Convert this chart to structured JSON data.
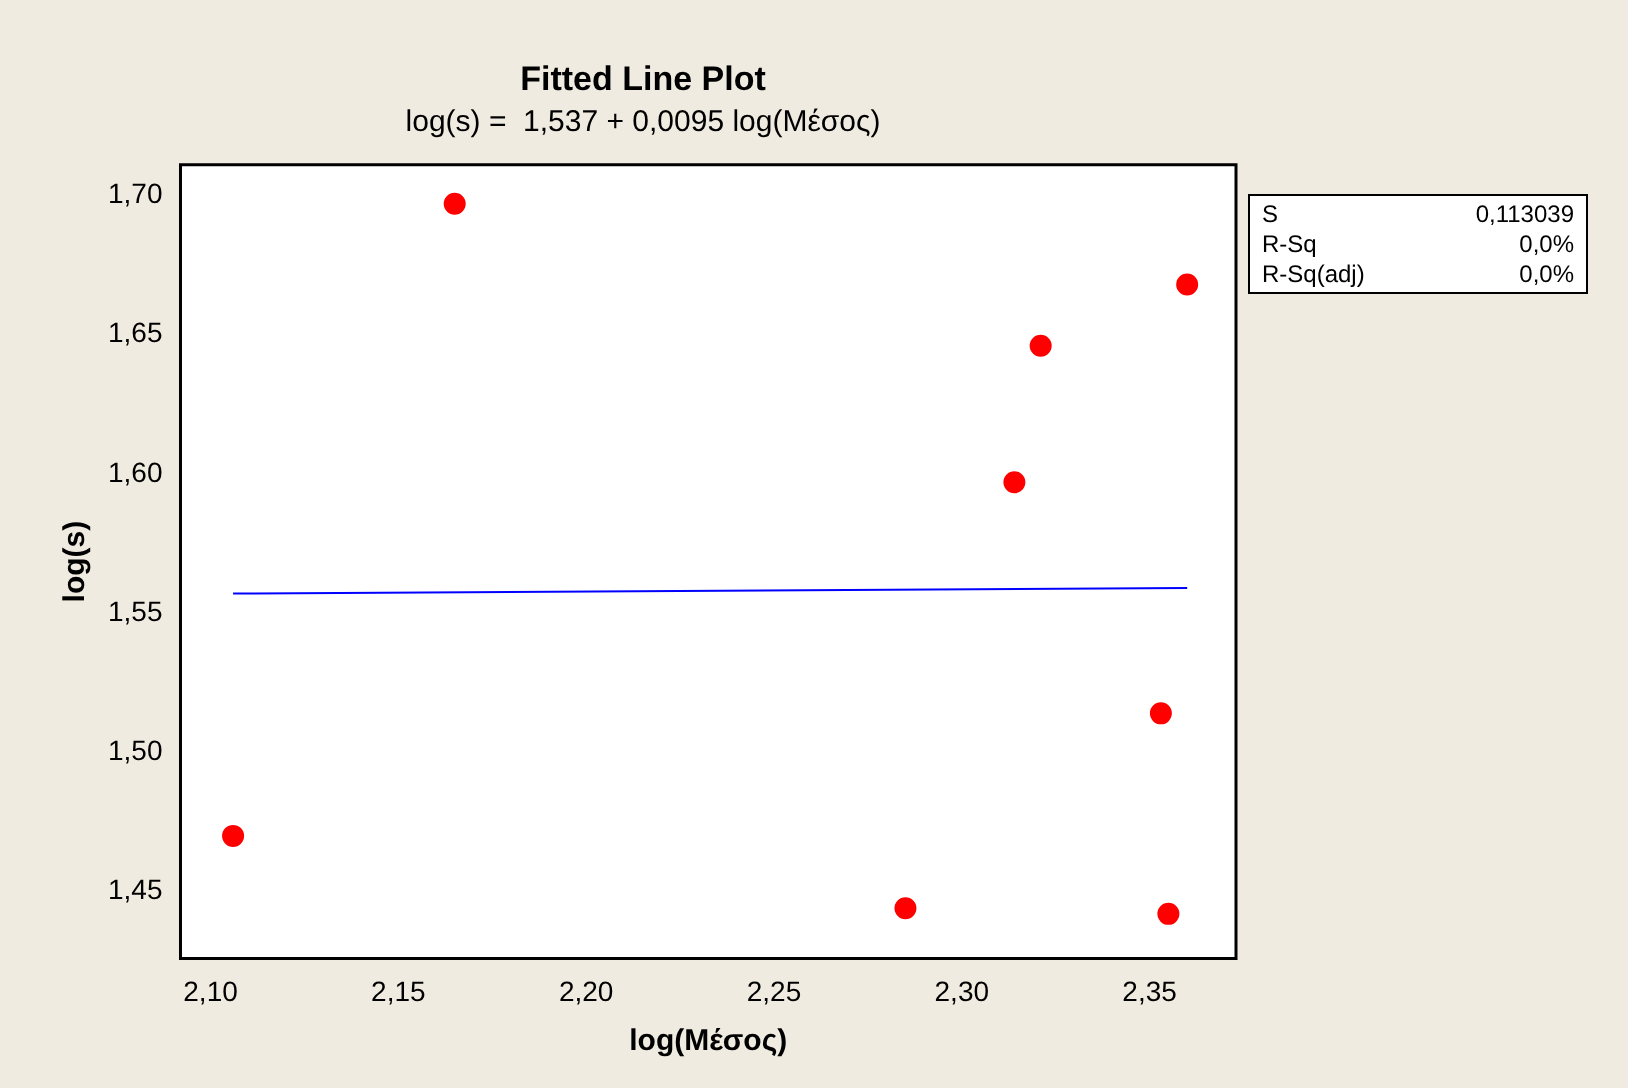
{
  "chart_data": {
    "type": "scatter",
    "title": "Fitted Line Plot",
    "subtitle": "log(s) =  1,537 + 0,0095 log(Μέσος)",
    "xlabel": "log(Μέσος)",
    "ylabel": "log(s)",
    "annotations": [
      "S",
      "0,113039",
      "R-Sq",
      "0,0%",
      "R-Sq(adj)",
      "0,0%"
    ],
    "series": [
      {
        "type": "scatter",
        "color": "#ff0000",
        "marker": "circle",
        "x": [
          2.106,
          2.165,
          2.285,
          2.314,
          2.321,
          2.353,
          2.355,
          2.36
        ],
        "values": [
          1.47,
          1.697,
          1.444,
          1.597,
          1.646,
          1.514,
          1.442,
          1.668
        ]
      },
      {
        "type": "line",
        "color": "#0000ff",
        "marker": "none",
        "x": [
          2.106,
          2.36
        ],
        "values": [
          1.557,
          1.559
        ]
      }
    ],
    "xlim": [
      2.092,
      2.373
    ],
    "ylim": [
      1.426,
      1.711
    ],
    "xticks": [
      {
        "value": 2.1,
        "label": "2,10"
      },
      {
        "value": 2.15,
        "label": "2,15"
      },
      {
        "value": 2.2,
        "label": "2,20"
      },
      {
        "value": 2.25,
        "label": "2,25"
      },
      {
        "value": 2.3,
        "label": "2,30"
      },
      {
        "value": 2.35,
        "label": "2,35"
      }
    ],
    "yticks": [
      {
        "value": 1.45,
        "label": "1,45"
      },
      {
        "value": 1.5,
        "label": "1,50"
      },
      {
        "value": 1.55,
        "label": "1,55"
      },
      {
        "value": 1.6,
        "label": "1,60"
      },
      {
        "value": 1.65,
        "label": "1,65"
      },
      {
        "value": 1.7,
        "label": "1,70"
      }
    ],
    "grid": false,
    "legend": false
  }
}
